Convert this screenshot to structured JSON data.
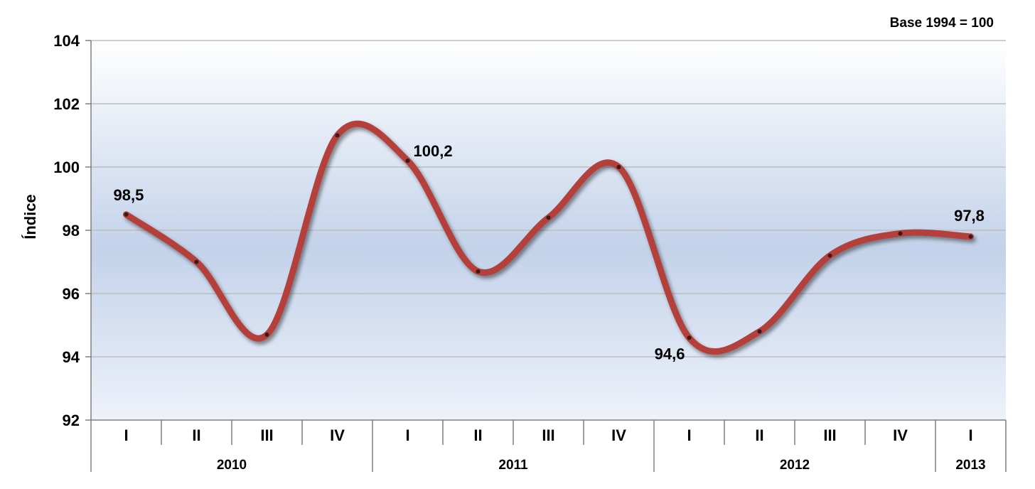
{
  "chart_data": {
    "type": "line",
    "note": "Base 1994 = 100",
    "ylabel": "Índice",
    "xlabel": "",
    "ylim": [
      92,
      104
    ],
    "yticks": [
      "92",
      "94",
      "96",
      "98",
      "100",
      "102",
      "104"
    ],
    "grid": true,
    "categories": [
      "I",
      "II",
      "III",
      "IV",
      "I",
      "II",
      "III",
      "IV",
      "I",
      "II",
      "III",
      "IV",
      "I"
    ],
    "category_display": [
      "I",
      "II",
      "III",
      "IV",
      "I",
      "II",
      "III",
      "IV",
      "I",
      "II",
      "III",
      "IV",
      "I"
    ],
    "years": [
      {
        "label": "2010",
        "quarters": 4
      },
      {
        "label": "2011",
        "quarters": 4
      },
      {
        "label": "2012",
        "quarters": 4
      },
      {
        "label": "2013",
        "quarters": 1
      }
    ],
    "series": [
      {
        "values": [
          98.5,
          97.0,
          94.7,
          101.0,
          100.2,
          96.7,
          98.4,
          100.0,
          94.6,
          94.8,
          97.2,
          97.9,
          97.8
        ]
      }
    ],
    "data_labels": [
      {
        "index": 0,
        "text": "98,5"
      },
      {
        "index": 4,
        "text": "100,2"
      },
      {
        "index": 8,
        "text": "94,6"
      },
      {
        "index": 12,
        "text": "97,8"
      }
    ],
    "colors": {
      "line": "#b3413b",
      "plot_top": "#ffffff",
      "plot_mid": "#c3d2ea",
      "grid": "#bdbdbd"
    }
  }
}
